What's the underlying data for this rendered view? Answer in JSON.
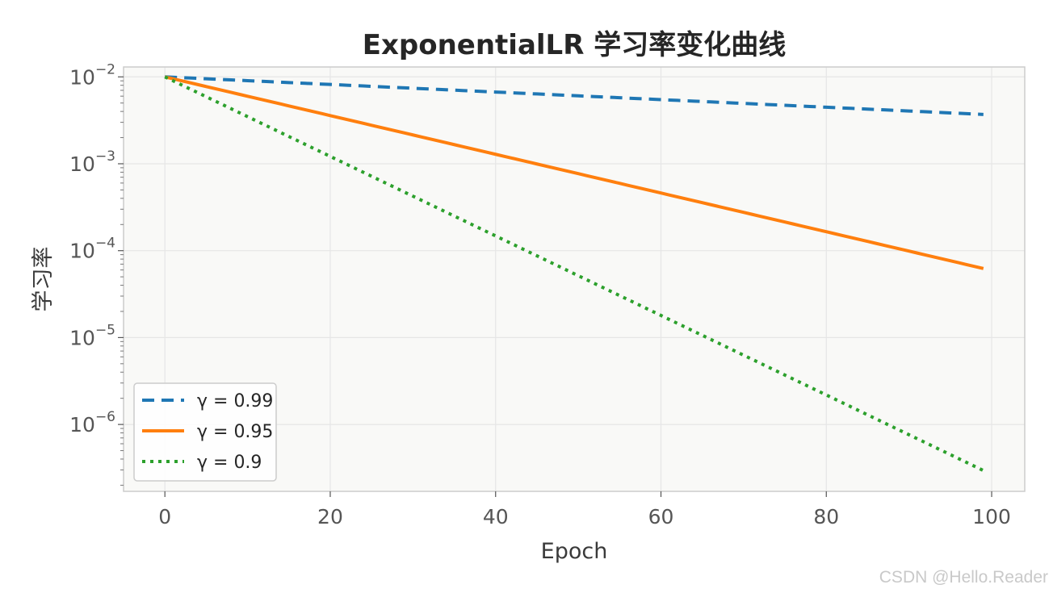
{
  "chart_data": {
    "type": "line",
    "title": "ExponentialLR 学习率变化曲线",
    "xlabel": "Epoch",
    "ylabel": "学习率",
    "yscale": "log",
    "xlim": [
      -5,
      104
    ],
    "ylim": [
      1.7e-07,
      0.013
    ],
    "x_ticks": [
      0,
      20,
      40,
      60,
      80,
      100
    ],
    "y_ticks": [
      {
        "value": 0.01,
        "base": "10",
        "exp": "−2"
      },
      {
        "value": 0.001,
        "base": "10",
        "exp": "−3"
      },
      {
        "value": 0.0001,
        "base": "10",
        "exp": "−4"
      },
      {
        "value": 1e-05,
        "base": "10",
        "exp": "−5"
      },
      {
        "value": 1e-06,
        "base": "10",
        "exp": "−6"
      }
    ],
    "grid": true,
    "legend_position": "lower-left",
    "initial_lr": 0.01,
    "epochs": 100,
    "series": [
      {
        "name": "γ = 0.99",
        "gamma": 0.99,
        "color": "#1f77b4",
        "style": "dashed"
      },
      {
        "name": "γ = 0.95",
        "gamma": 0.95,
        "color": "#ff7f0e",
        "style": "solid"
      },
      {
        "name": "γ = 0.9",
        "gamma": 0.9,
        "color": "#2ca02c",
        "style": "dotted"
      }
    ],
    "colors": {
      "plot_background": "#f9f9f7",
      "frame": "#cccccc",
      "grid": "#e6e6e6"
    }
  },
  "watermark": "CSDN @Hello.Reader"
}
